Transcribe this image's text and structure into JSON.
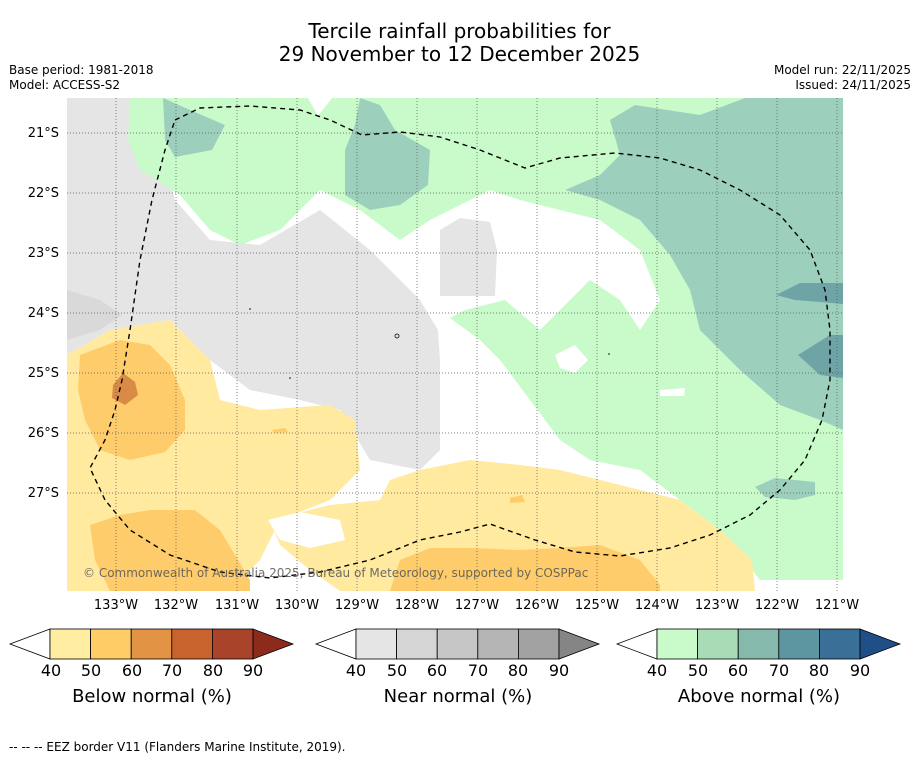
{
  "header": {
    "title_line1": "Tercile rainfall probabilities for",
    "title_line2": "29 November to 12 December 2025",
    "base_period": "Base period: 1981-2018",
    "model": "Model: ACCESS-S2",
    "model_run": "Model run: 22/11/2025",
    "issued": "Issued: 24/11/2025"
  },
  "map": {
    "latitude_labels": [
      "21°S",
      "22°S",
      "23°S",
      "24°S",
      "25°S",
      "26°S",
      "27°S"
    ],
    "longitude_labels": [
      "133°W",
      "132°W",
      "131°W",
      "130°W",
      "129°W",
      "128°W",
      "127°W",
      "126°W",
      "125°W",
      "124°W",
      "123°W",
      "122°W",
      "121°W"
    ],
    "copyright": "© Commonwealth of Australia 2025, Bureau of Meteorology, supported by COSPPac",
    "colors": {
      "near_normal_40": "#e5e5e5",
      "above_40": "#c9fbca",
      "above_60": "#9cd0bd",
      "above_80": "#6fa4a6",
      "below_40": "#ffeaa0",
      "below_50": "#ffcc6b",
      "below_70": "#d98a46"
    }
  },
  "colorbars": [
    {
      "name": "below",
      "title": "Below normal (%)",
      "ticks": [
        "40",
        "50",
        "60",
        "70",
        "80",
        "90"
      ],
      "colors": [
        "#ffeea2",
        "#ffcc66",
        "#e29444",
        "#c9632e",
        "#a9442a",
        "#8c2a1c"
      ]
    },
    {
      "name": "near",
      "title": "Near normal (%)",
      "ticks": [
        "40",
        "50",
        "60",
        "70",
        "80",
        "90"
      ],
      "colors": [
        "#e5e5e5",
        "#d5d5d5",
        "#c6c6c6",
        "#b5b5b5",
        "#a2a2a2",
        "#858585"
      ]
    },
    {
      "name": "above",
      "title": "Above normal (%)",
      "ticks": [
        "40",
        "50",
        "60",
        "70",
        "80",
        "90"
      ],
      "colors": [
        "#c9fbca",
        "#a8dcb6",
        "#85b9ac",
        "#5d96a0",
        "#3a6f98",
        "#1f4f86"
      ]
    }
  ],
  "footer": {
    "eez_legend": "--  --  -- EEZ border V11 (Flanders Marine Institute, 2019)."
  }
}
